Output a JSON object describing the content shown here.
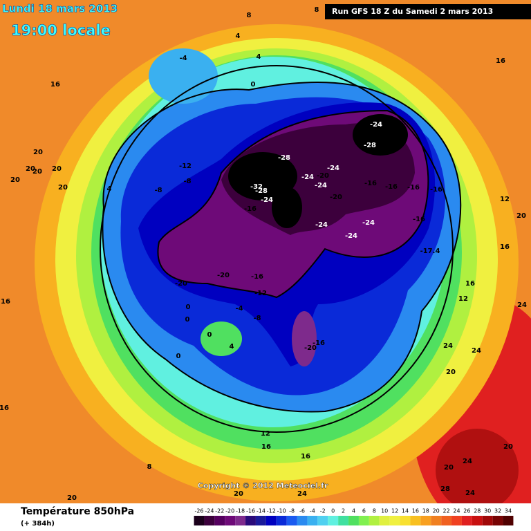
{
  "header": {
    "date": "Lundi 18 mars 2013",
    "time": "19:00 locale",
    "run": "Run GFS 18 Z du Samedi 2 mars 2013"
  },
  "map": {
    "labels": [
      8,
      8,
      4,
      4,
      -4,
      16,
      0,
      16,
      -24,
      -28,
      -28,
      -12,
      -24,
      -24,
      -20,
      -32,
      -28,
      -24,
      -16,
      -16,
      -16,
      -16,
      -8,
      -8,
      4,
      -24,
      -20,
      -16,
      -24,
      -24,
      -16,
      -24,
      -17.4,
      12,
      20,
      16,
      16,
      12,
      24,
      20,
      20,
      20,
      20,
      20,
      20,
      -20,
      -20,
      -16,
      -12,
      -4,
      -8,
      0,
      0,
      0,
      4,
      0,
      -16,
      -20,
      16,
      16,
      24,
      24,
      20,
      12,
      16,
      16,
      24,
      20,
      8,
      20,
      20,
      24,
      28,
      24,
      20
    ],
    "copyright": "Copyright © 2012 Meteociel.fr"
  },
  "footer": {
    "title": "Température 850hPa",
    "subtitle": "(+ 384h)"
  },
  "legend": {
    "ticks": [
      -26,
      -24,
      -22,
      -20,
      -18,
      -16,
      -14,
      -12,
      -10,
      -8,
      -6,
      -4,
      -2,
      0,
      2,
      4,
      6,
      8,
      10,
      12,
      14,
      16,
      18,
      20,
      22,
      24,
      26,
      28,
      30,
      32,
      34
    ],
    "colors": [
      "#1a001a",
      "#3c003c",
      "#55005f",
      "#6e0a78",
      "#7e2a8c",
      "#2a0a7a",
      "#1a1a9a",
      "#0000c0",
      "#0a2ad8",
      "#1a5af0",
      "#2a8af0",
      "#3ab0f0",
      "#50d0f0",
      "#60f0e0",
      "#40e0a0",
      "#50e060",
      "#80f050",
      "#b0f040",
      "#e0f040",
      "#f0f040",
      "#f8e030",
      "#f8c020",
      "#f8a020",
      "#f08020",
      "#f06020",
      "#f04020",
      "#e02020",
      "#c81010",
      "#a00808",
      "#780404",
      "#500000"
    ]
  }
}
